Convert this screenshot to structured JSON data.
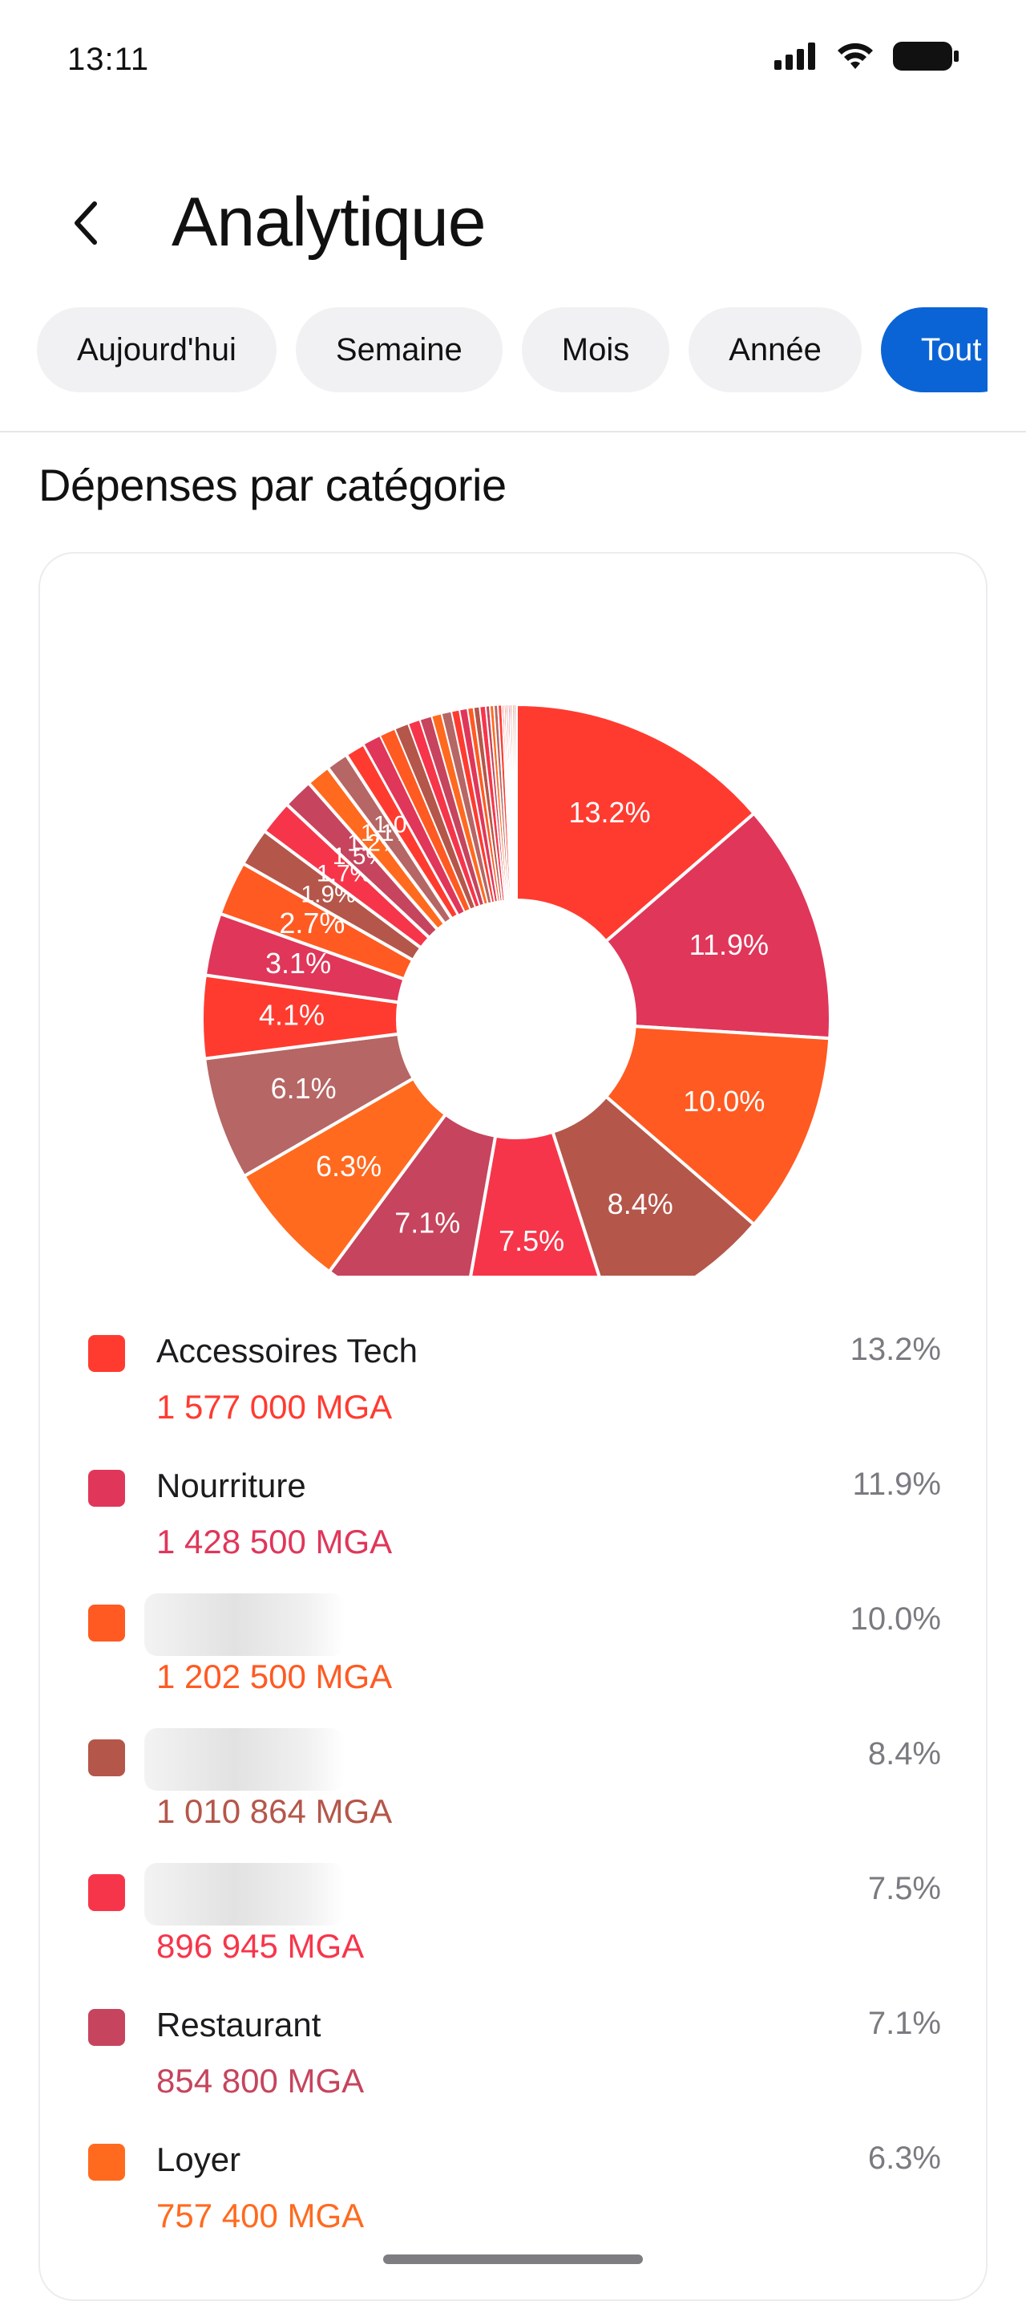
{
  "status": {
    "time": "13:11",
    "icons": [
      "signal-icon",
      "wifi-icon",
      "battery-icon"
    ]
  },
  "header": {
    "back_icon": "chevron-left-icon",
    "title": "Analytique"
  },
  "filters": {
    "chips": [
      "Aujourd'hui",
      "Semaine",
      "Mois",
      "Année",
      "Tout"
    ],
    "active": "Tout"
  },
  "section": {
    "title": "Dépenses par catégorie"
  },
  "chart_data": {
    "type": "pie",
    "donut": true,
    "slice_values": [
      13.2,
      11.9,
      10.0,
      8.4,
      7.5,
      7.1,
      6.3,
      6.1,
      4.1,
      3.1,
      2.7,
      1.9,
      1.7,
      1.5,
      1.2,
      1.1,
      1.0,
      0.9,
      0.8,
      0.7,
      0.6,
      0.6,
      0.5,
      0.5,
      0.4,
      0.4,
      0.3,
      0.3,
      0.3,
      0.2,
      0.2,
      0.2,
      0.2,
      0.1,
      0.1,
      0.1,
      0.1,
      0.1,
      0.1,
      0.1
    ],
    "slice_labels": [
      "13.2%",
      "11.9%",
      "10.0%",
      "8.4%",
      "7.5%",
      "7.1%",
      "6.3%",
      "6.1%",
      "4.1%",
      "3.1%",
      "2.7%",
      "1.9%",
      "1.7%",
      "1.5%",
      "1.2%",
      "1.1%",
      "1.0%"
    ],
    "colors": [
      "#ff3b30",
      "#e0365a",
      "#ff5a22",
      "#b5564a",
      "#f7354a",
      "#c6445d",
      "#ff6a1f",
      "#b66665",
      "#ff3b30",
      "#e0365a",
      "#ff5a22",
      "#b5564a",
      "#f7354a",
      "#c6445d",
      "#ff6a1f",
      "#b66665"
    ]
  },
  "legend": {
    "items": [
      {
        "name": "Accessoires Tech",
        "amount": "1 577 000 MGA",
        "percent": "13.2%",
        "color": "#ff3b30",
        "redacted": false
      },
      {
        "name": "Nourriture",
        "amount": "1 428 500 MGA",
        "percent": "11.9%",
        "color": "#e0365a",
        "redacted": false
      },
      {
        "name": "",
        "amount": "1 202 500 MGA",
        "percent": "10.0%",
        "color": "#ff5a22",
        "redacted": true
      },
      {
        "name": "",
        "amount": "1 010 864 MGA",
        "percent": "8.4%",
        "color": "#b5564a",
        "redacted": true
      },
      {
        "name": "",
        "amount": "896 945 MGA",
        "percent": "7.5%",
        "color": "#f7354a",
        "redacted": true
      },
      {
        "name": "Restaurant",
        "amount": "854 800 MGA",
        "percent": "7.1%",
        "color": "#c6445d",
        "redacted": false
      },
      {
        "name": "Loyer",
        "amount": "757 400 MGA",
        "percent": "6.3%",
        "color": "#ff6a1f",
        "redacted": false
      }
    ]
  }
}
